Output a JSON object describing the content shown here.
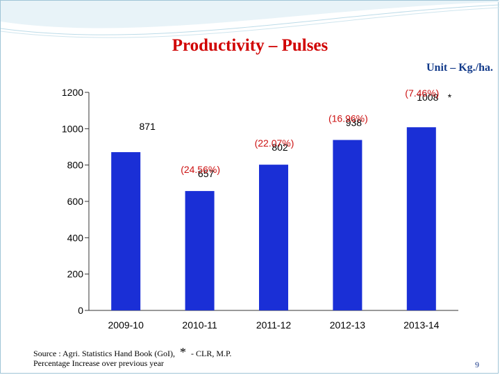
{
  "header": {
    "title": "Productivity – Pulses",
    "unit": "Unit – Kg./ha."
  },
  "chart_data": {
    "type": "bar",
    "title": "Productivity – Pulses",
    "categories": [
      "2009-10",
      "2010-11",
      "2011-12",
      "2012-13",
      "2013-14"
    ],
    "values": [
      871,
      657,
      802,
      938,
      1008
    ],
    "value_labels": [
      "871",
      "657",
      "802",
      "938",
      "1008"
    ],
    "change_labels": [
      "",
      "(24.56%)",
      "(22.07%)",
      "(16.96%)",
      "(7.46%)"
    ],
    "asterisk": [
      "",
      "",
      "",
      "",
      "*"
    ],
    "ylim": [
      0,
      1200
    ],
    "yticks": [
      0,
      200,
      400,
      600,
      800,
      1000,
      1200
    ],
    "xlabel": "",
    "ylabel": "",
    "grid": false,
    "legend": "none",
    "bar_color": "#1a2fd6",
    "label_color": "#000000",
    "change_color": "#cc1111"
  },
  "footer": {
    "source": "Source : Agri. Statistics Hand Book (GoI),",
    "star": "*",
    "clr": "- CLR, M.P.",
    "note": "Percentage Increase over previous year",
    "page": "9"
  }
}
